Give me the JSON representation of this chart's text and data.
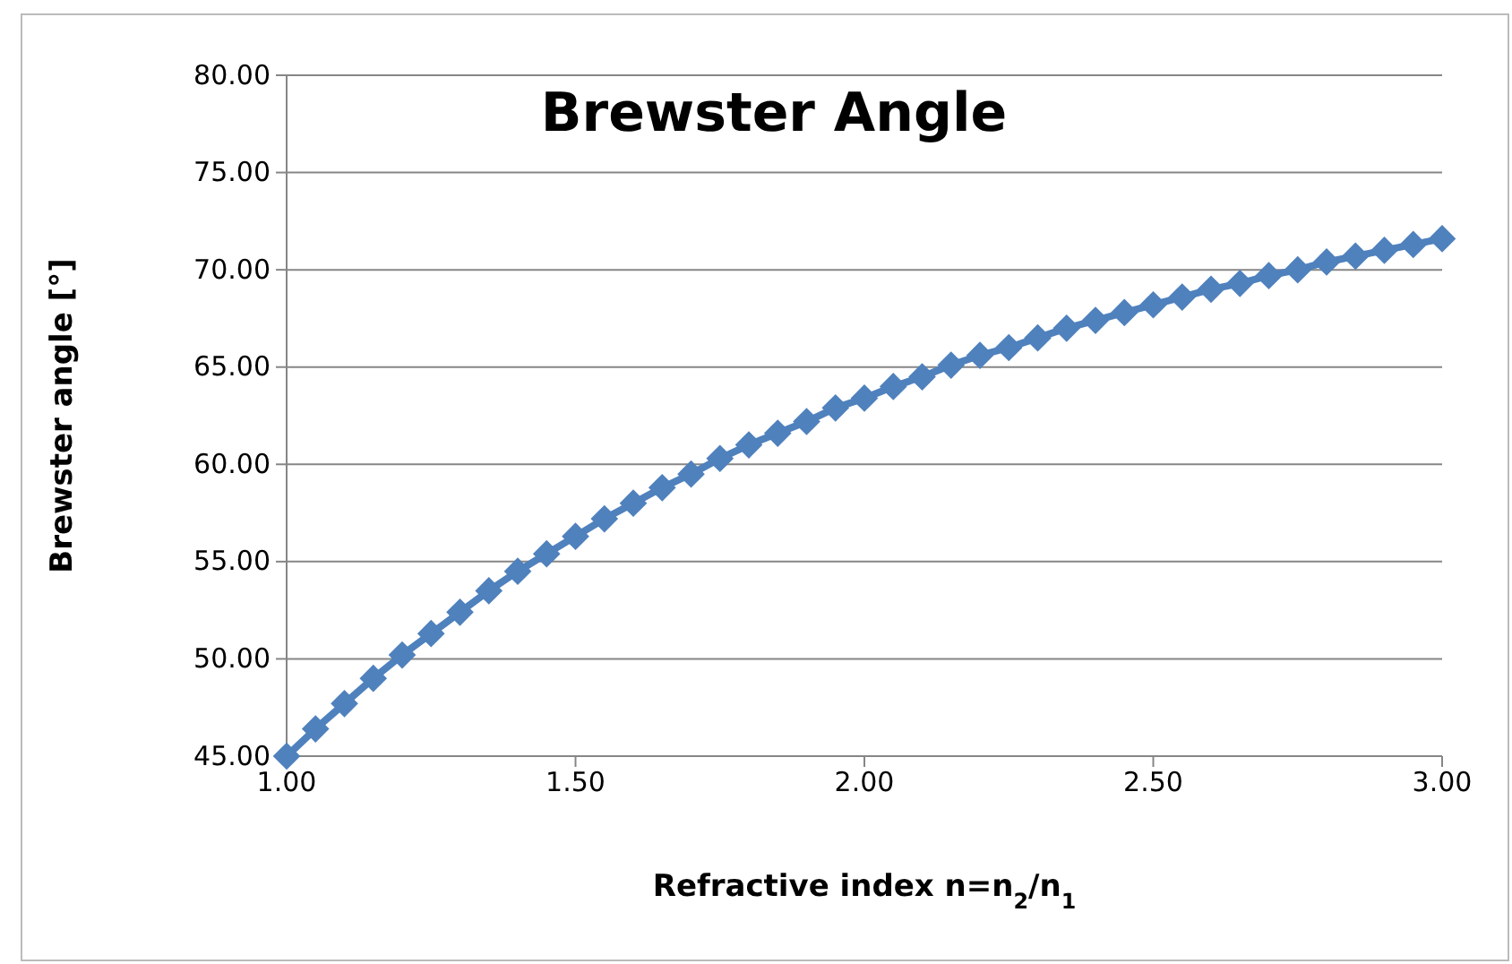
{
  "chart_data": {
    "type": "line",
    "title": "Brewster Angle",
    "xlabel": "Refractive index n=n$_{2}$/n$_{1}$",
    "ylabel": "Brewster angle [°]",
    "x": [
      1.0,
      1.05,
      1.1,
      1.15,
      1.2,
      1.25,
      1.3,
      1.35,
      1.4,
      1.45,
      1.5,
      1.55,
      1.6,
      1.65,
      1.7,
      1.75,
      1.8,
      1.85,
      1.9,
      1.95,
      2.0,
      2.05,
      2.1,
      2.15,
      2.2,
      2.25,
      2.3,
      2.35,
      2.4,
      2.45,
      2.5,
      2.55,
      2.6,
      2.65,
      2.7,
      2.75,
      2.8,
      2.85,
      2.9,
      2.95,
      3.0
    ],
    "series": [
      {
        "color": "#4f81bd",
        "values": [
          45.0,
          46.4,
          47.7,
          49.0,
          50.2,
          51.3,
          52.4,
          53.5,
          54.5,
          55.4,
          56.3,
          57.2,
          58.0,
          58.8,
          59.5,
          60.3,
          61.0,
          61.6,
          62.2,
          62.9,
          63.4,
          64.0,
          64.5,
          65.1,
          65.6,
          66.0,
          66.5,
          67.0,
          67.4,
          67.8,
          68.2,
          68.6,
          69.0,
          69.3,
          69.7,
          70.0,
          70.4,
          70.7,
          71.0,
          71.3,
          71.6
        ]
      }
    ],
    "xlim": [
      1,
      3
    ],
    "xticks": [
      {
        "value": 1,
        "label": "1.00"
      },
      {
        "value": 1.5,
        "label": "1.50"
      },
      {
        "value": 2,
        "label": "2.00"
      },
      {
        "value": 2.5,
        "label": "2.50"
      },
      {
        "value": 3,
        "label": "3.00"
      }
    ],
    "ylim": [
      45,
      80
    ],
    "yticks": [
      {
        "value": 45,
        "label": "45.00"
      },
      {
        "value": 50,
        "label": "50.00"
      },
      {
        "value": 55,
        "label": "55.00"
      },
      {
        "value": 60,
        "label": "60.00"
      },
      {
        "value": 65,
        "label": "65.00"
      },
      {
        "value": 70,
        "label": "70.00"
      },
      {
        "value": 75,
        "label": "75.00"
      },
      {
        "value": 80,
        "label": "80.00"
      }
    ],
    "grid": "y",
    "marker": "diamond",
    "line_style": "solid"
  }
}
